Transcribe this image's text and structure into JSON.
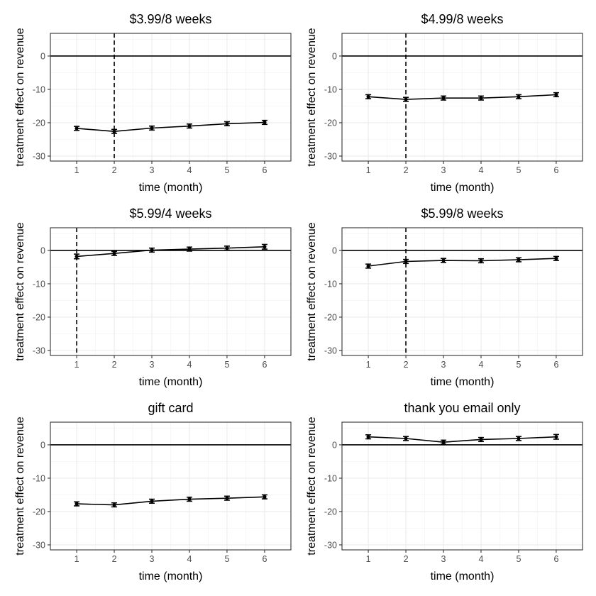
{
  "chart_data": [
    {
      "type": "line",
      "title": "$3.99/8 weeks",
      "xlabel": "time (month)",
      "ylabel": "treatment effect on revenue",
      "x": [
        1,
        2,
        3,
        4,
        5,
        6
      ],
      "values": [
        -21.7,
        -22.6,
        -21.6,
        -21.0,
        -20.3,
        -19.9
      ],
      "error": [
        0.6,
        0.6,
        0.6,
        0.6,
        0.6,
        0.6
      ],
      "reference_x": 2,
      "reference_y": 0,
      "xticks": [
        1,
        2,
        3,
        4,
        5,
        6
      ],
      "yticks": [
        0,
        -10,
        -20,
        -30
      ],
      "xlim": [
        0.3,
        6.7
      ],
      "ylim": [
        -31.5,
        6.8
      ]
    },
    {
      "type": "line",
      "title": "$4.99/8 weeks",
      "xlabel": "time (month)",
      "ylabel": "treatment effect on revenue",
      "x": [
        1,
        2,
        3,
        4,
        5,
        6
      ],
      "values": [
        -12.2,
        -13.0,
        -12.6,
        -12.6,
        -12.2,
        -11.6
      ],
      "error": [
        0.6,
        0.6,
        0.6,
        0.6,
        0.6,
        0.6
      ],
      "reference_x": 2,
      "reference_y": 0,
      "xticks": [
        1,
        2,
        3,
        4,
        5,
        6
      ],
      "yticks": [
        0,
        -10,
        -20,
        -30
      ],
      "xlim": [
        0.3,
        6.7
      ],
      "ylim": [
        -31.5,
        6.8
      ]
    },
    {
      "type": "line",
      "title": "$5.99/4 weeks",
      "xlabel": "time (month)",
      "ylabel": "treatment effect on revenue",
      "x": [
        1,
        2,
        3,
        4,
        5,
        6
      ],
      "values": [
        -1.8,
        -0.9,
        0.1,
        0.4,
        0.7,
        1.1
      ],
      "error": [
        0.7,
        0.6,
        0.6,
        0.6,
        0.6,
        0.7
      ],
      "reference_x": 1,
      "reference_y": 0,
      "xticks": [
        1,
        2,
        3,
        4,
        5,
        6
      ],
      "yticks": [
        0,
        -10,
        -20,
        -30
      ],
      "xlim": [
        0.3,
        6.7
      ],
      "ylim": [
        -31.5,
        6.8
      ]
    },
    {
      "type": "line",
      "title": "$5.99/8 weeks",
      "xlabel": "time (month)",
      "ylabel": "treatment effect on revenue",
      "x": [
        1,
        2,
        3,
        4,
        5,
        6
      ],
      "values": [
        -4.7,
        -3.3,
        -3.0,
        -3.1,
        -2.8,
        -2.4
      ],
      "error": [
        0.6,
        0.6,
        0.6,
        0.6,
        0.6,
        0.6
      ],
      "reference_x": 2,
      "reference_y": 0,
      "xticks": [
        1,
        2,
        3,
        4,
        5,
        6
      ],
      "yticks": [
        0,
        -10,
        -20,
        -30
      ],
      "xlim": [
        0.3,
        6.7
      ],
      "ylim": [
        -31.5,
        6.8
      ]
    },
    {
      "type": "line",
      "title": "gift card",
      "xlabel": "time (month)",
      "ylabel": "treatment effect on revenue",
      "x": [
        1,
        2,
        3,
        4,
        5,
        6
      ],
      "values": [
        -17.7,
        -18.0,
        -16.9,
        -16.3,
        -16.0,
        -15.6
      ],
      "error": [
        0.6,
        0.6,
        0.6,
        0.6,
        0.6,
        0.6
      ],
      "reference_x": null,
      "reference_y": 0,
      "xticks": [
        1,
        2,
        3,
        4,
        5,
        6
      ],
      "yticks": [
        0,
        -10,
        -20,
        -30
      ],
      "xlim": [
        0.3,
        6.7
      ],
      "ylim": [
        -31.5,
        6.8
      ]
    },
    {
      "type": "line",
      "title": "thank you email only",
      "xlabel": "time (month)",
      "ylabel": "treatment effect on revenue",
      "x": [
        1,
        2,
        3,
        4,
        5,
        6
      ],
      "values": [
        2.4,
        1.9,
        0.8,
        1.6,
        1.9,
        2.4
      ],
      "error": [
        0.6,
        0.6,
        0.6,
        0.6,
        0.6,
        0.7
      ],
      "reference_x": null,
      "reference_y": 0,
      "xticks": [
        1,
        2,
        3,
        4,
        5,
        6
      ],
      "yticks": [
        0,
        -10,
        -20,
        -30
      ],
      "xlim": [
        0.3,
        6.7
      ],
      "ylim": [
        -31.5,
        6.8
      ]
    }
  ]
}
